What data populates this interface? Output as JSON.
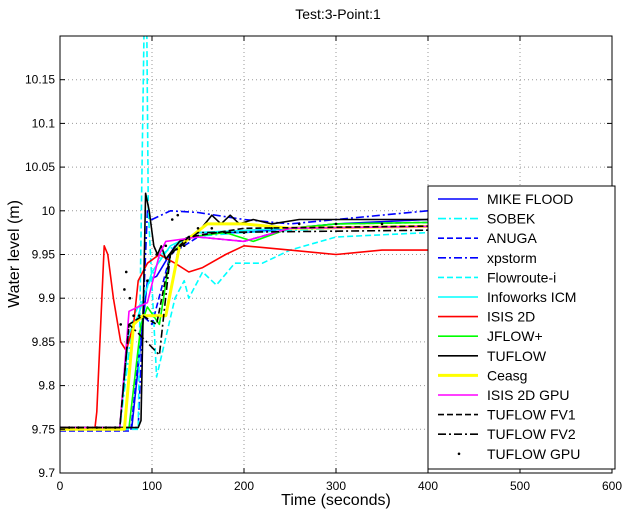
{
  "chart_data": {
    "type": "line",
    "title": "Test:3-Point:1",
    "xlabel": "Time (seconds)",
    "ylabel": "Water level (m)",
    "xlim": [
      0,
      600
    ],
    "ylim": [
      9.7,
      10.2
    ],
    "xticks": [
      0,
      100,
      200,
      300,
      400,
      500,
      600
    ],
    "yticks": [
      9.7,
      9.75,
      9.8,
      9.85,
      9.9,
      9.95,
      10,
      10.05,
      10.1,
      10.15
    ],
    "ytick_labels": [
      "9.7",
      "9.75",
      "9.8",
      "9.85",
      "9.9",
      "9.95",
      "10",
      "10.05",
      "10.1",
      "10.15"
    ],
    "grid": true,
    "legend_position": "right",
    "series": [
      {
        "name": "MIKE FLOOD",
        "color": "#0000ff",
        "style": "solid",
        "x": [
          0,
          78,
          95,
          105,
          125,
          150,
          200,
          250,
          300,
          400,
          600
        ],
        "y": [
          9.752,
          9.752,
          9.92,
          9.925,
          9.96,
          9.975,
          9.975,
          9.98,
          9.985,
          9.99,
          9.99
        ]
      },
      {
        "name": "SOBEK",
        "color": "#00ffff",
        "style": "dashdot",
        "x": [
          0,
          65,
          80,
          90,
          110,
          140,
          200,
          300,
          600
        ],
        "y": [
          9.752,
          9.752,
          9.88,
          9.9,
          9.95,
          9.97,
          9.975,
          9.98,
          9.985
        ]
      },
      {
        "name": "ANUGA",
        "color": "#0000ff",
        "style": "dashed",
        "x": [
          0,
          77,
          90,
          100,
          120,
          150,
          200,
          250,
          300,
          600
        ],
        "y": [
          9.748,
          9.748,
          9.88,
          9.87,
          9.95,
          9.97,
          9.965,
          9.98,
          9.985,
          9.99
        ]
      },
      {
        "name": "xpstorm",
        "color": "#0000ff",
        "style": "dashdot",
        "x": [
          0,
          85,
          95,
          100,
          120,
          150,
          200,
          250,
          300,
          400,
          600
        ],
        "y": [
          9.752,
          9.752,
          10.0,
          9.99,
          10.0,
          9.998,
          9.99,
          9.985,
          9.99,
          10.0,
          9.998
        ]
      },
      {
        "name": "Flowroute-i",
        "color": "#00ffff",
        "style": "dashed",
        "x": [
          0,
          85,
          92,
          94,
          96,
          105,
          125,
          135,
          140,
          155,
          170,
          190,
          220,
          250,
          300,
          400,
          600
        ],
        "y": [
          9.75,
          9.75,
          10.25,
          10.25,
          10.0,
          9.81,
          9.9,
          9.92,
          9.9,
          9.93,
          9.915,
          9.94,
          9.94,
          9.955,
          9.97,
          9.975,
          9.985
        ]
      },
      {
        "name": "Infoworks ICM",
        "color": "#00ffff",
        "style": "solid",
        "x": [
          0,
          65,
          75,
          85,
          100,
          120,
          150,
          250,
          600
        ],
        "y": [
          9.752,
          9.752,
          9.86,
          9.88,
          9.93,
          9.96,
          9.975,
          9.98,
          9.985
        ]
      },
      {
        "name": "ISIS 2D",
        "color": "#ff0000",
        "style": "solid",
        "x": [
          0,
          38,
          40,
          48,
          52,
          58,
          66,
          72,
          80,
          85,
          95,
          108,
          125,
          140,
          155,
          180,
          200,
          250,
          300,
          350,
          400,
          450,
          500,
          600
        ],
        "y": [
          9.752,
          9.752,
          9.77,
          9.96,
          9.95,
          9.9,
          9.85,
          9.84,
          9.87,
          9.92,
          9.94,
          9.95,
          9.94,
          9.93,
          9.935,
          9.95,
          9.96,
          9.955,
          9.95,
          9.955,
          9.955,
          9.952,
          9.95,
          9.953
        ]
      },
      {
        "name": "JFLOW+",
        "color": "#00ff00",
        "style": "solid",
        "x": [
          0,
          75,
          88,
          95,
          108,
          120,
          140,
          180,
          210,
          250,
          300,
          600
        ],
        "y": [
          9.752,
          9.752,
          9.87,
          9.89,
          9.87,
          9.95,
          9.97,
          9.975,
          9.965,
          9.98,
          9.985,
          9.99
        ]
      },
      {
        "name": "TUFLOW",
        "color": "#000000",
        "style": "solid",
        "x": [
          0,
          85,
          88,
          93,
          97,
          102,
          106,
          110,
          115,
          130,
          150,
          165,
          175,
          185,
          195,
          210,
          230,
          260,
          400,
          500,
          600
        ],
        "y": [
          9.752,
          9.752,
          9.76,
          10.02,
          10.0,
          9.96,
          9.95,
          9.96,
          9.945,
          9.965,
          9.975,
          9.995,
          9.985,
          9.995,
          9.985,
          9.99,
          9.985,
          9.99,
          9.99,
          9.992,
          9.995
        ]
      },
      {
        "name": "Ceasg",
        "color": "#ffff00",
        "style": "solid",
        "x": [
          0,
          70,
          80,
          90,
          115,
          130,
          160,
          200,
          250,
          600
        ],
        "y": [
          9.75,
          9.75,
          9.87,
          9.88,
          9.88,
          9.96,
          9.985,
          9.985,
          9.98,
          9.985
        ]
      },
      {
        "name": "ISIS 2D GPU",
        "color": "#ff00ff",
        "style": "solid",
        "x": [
          0,
          65,
          75,
          85,
          95,
          108,
          115,
          150,
          200,
          250,
          600
        ],
        "y": [
          9.752,
          9.752,
          9.885,
          9.89,
          9.895,
          9.95,
          9.965,
          9.97,
          9.965,
          9.98,
          9.985
        ]
      },
      {
        "name": "TUFLOW FV1",
        "color": "#000000",
        "style": "dashed",
        "x": [
          0,
          65,
          75,
          90,
          105,
          120,
          140,
          200,
          600
        ],
        "y": [
          9.752,
          9.752,
          9.87,
          9.88,
          9.87,
          9.95,
          9.97,
          9.98,
          9.985
        ]
      },
      {
        "name": "TUFLOW FV2",
        "color": "#000000",
        "style": "dashdot",
        "x": [
          0,
          65,
          75,
          85,
          108,
          120,
          150,
          600
        ],
        "y": [
          9.752,
          9.752,
          9.87,
          9.86,
          9.835,
          9.95,
          9.975,
          9.98
        ]
      },
      {
        "name": "TUFLOW GPU",
        "color": "#000000",
        "style": "dots",
        "x": [
          0,
          10,
          20,
          30,
          40,
          50,
          60,
          66,
          70,
          72,
          76,
          80,
          86,
          95,
          105,
          115,
          122,
          128,
          135,
          140,
          150,
          165,
          180,
          200,
          230,
          260,
          300,
          350,
          400,
          450,
          500,
          550,
          600
        ],
        "y": [
          9.752,
          9.752,
          9.752,
          9.752,
          9.752,
          9.752,
          9.752,
          9.87,
          9.91,
          9.93,
          9.9,
          9.88,
          9.88,
          9.92,
          9.95,
          9.96,
          9.99,
          9.995,
          9.96,
          9.97,
          9.98,
          9.98,
          9.975,
          9.975,
          9.98,
          9.985,
          9.985,
          9.985,
          9.99,
          9.99,
          9.99,
          9.99,
          9.99
        ]
      }
    ]
  }
}
